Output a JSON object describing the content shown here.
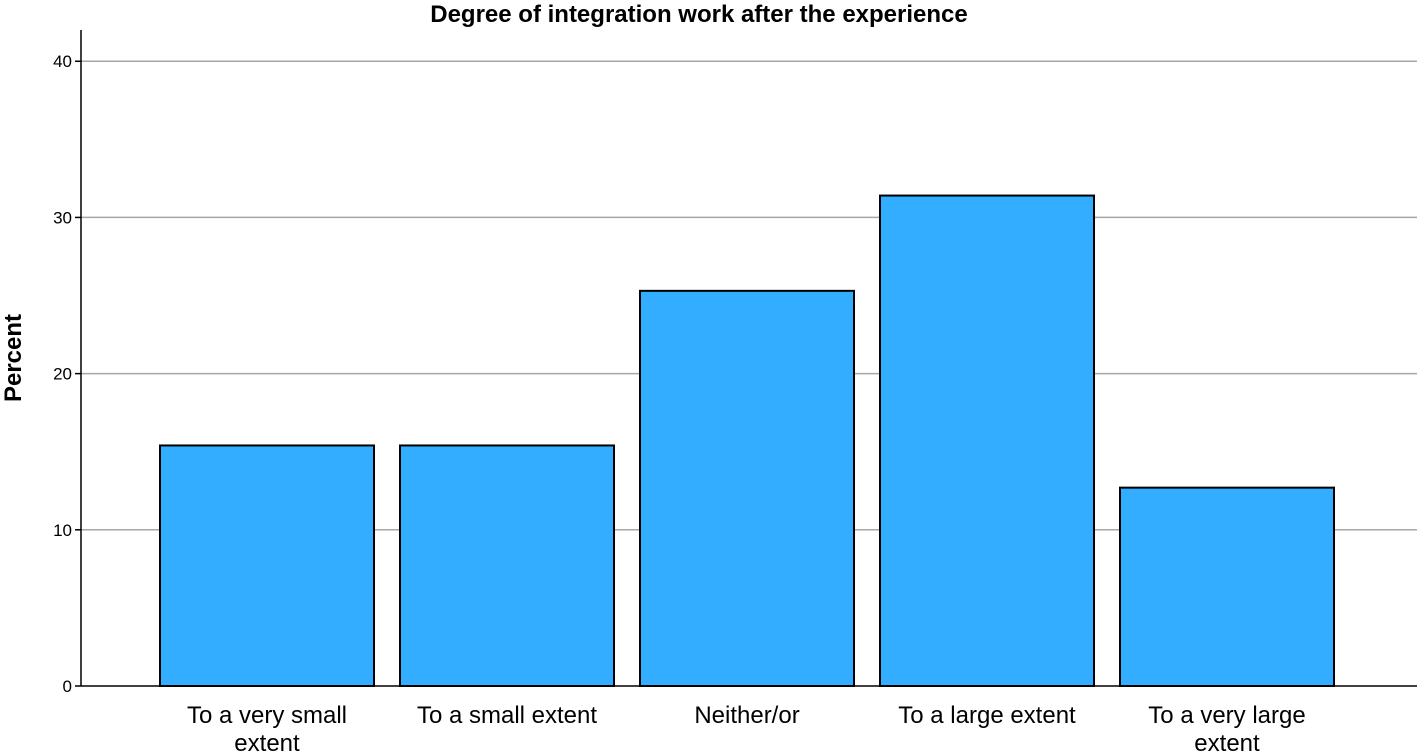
{
  "chart_data": {
    "type": "bar",
    "title": "Degree of integration work after the experience",
    "xlabel": "",
    "ylabel": "Percent",
    "categories": [
      [
        "To a very small",
        "extent"
      ],
      [
        "To a small extent"
      ],
      [
        "Neither/or"
      ],
      [
        "To a large extent"
      ],
      [
        "To a very large",
        "extent"
      ]
    ],
    "values": [
      15.4,
      15.4,
      25.3,
      31.4,
      12.7
    ],
    "ylim": [
      0,
      42
    ],
    "yticks": [
      0,
      10,
      20,
      30,
      40
    ],
    "grid": true,
    "bar_color": "#33adff",
    "bar_stroke": "#000000",
    "grid_color": "#a6a6a6"
  }
}
